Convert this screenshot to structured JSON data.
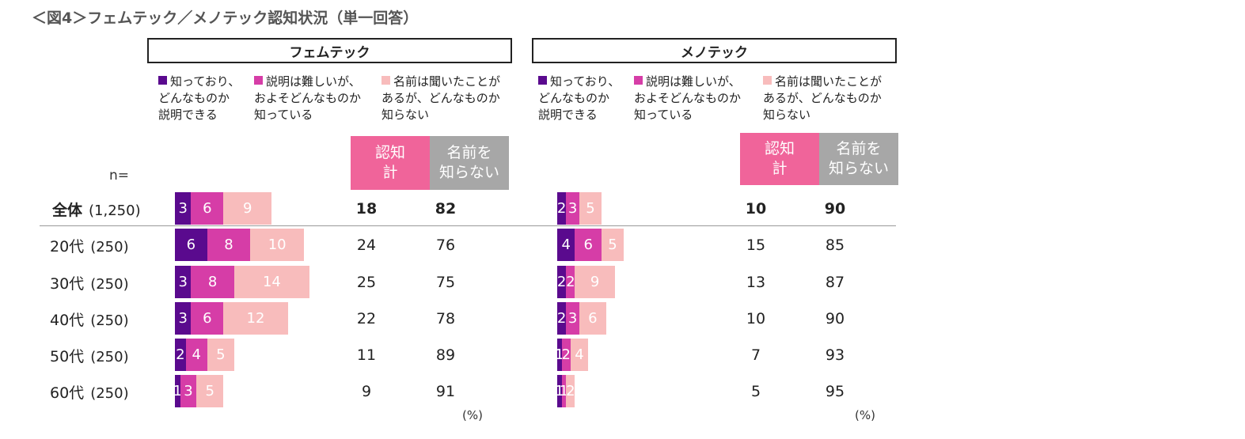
{
  "title": "＜図4＞フェムテック／メノテック認知状況（単一回答）",
  "n_label": "n=",
  "unit": "(%)",
  "colors": {
    "explain": "#5a0a8e",
    "roughly": "#d63da7",
    "heard": "#f8bcbc",
    "aware_header": "#f0649a",
    "unaware_header": "#a7a7a7"
  },
  "legend": [
    {
      "key": "explain",
      "label": "知っており、\nどんなものか\n説明できる"
    },
    {
      "key": "roughly",
      "label": "説明は難しいが、\nおよそどんなものか\n知っている"
    },
    {
      "key": "heard",
      "label": "名前は聞いたことが\nあるが、どんなものか\n知らない"
    }
  ],
  "headers": {
    "aware": "認知\n計",
    "unaware": "名前を\n知らない"
  },
  "rows": [
    {
      "group": "全体",
      "n": "(1,250)",
      "total": true
    },
    {
      "group": "20代",
      "n": "(250)"
    },
    {
      "group": "30代",
      "n": "(250)"
    },
    {
      "group": "40代",
      "n": "(250)"
    },
    {
      "group": "50代",
      "n": "(250)"
    },
    {
      "group": "60代",
      "n": "(250)"
    }
  ],
  "chart_data": [
    {
      "type": "bar",
      "title": "フェムテック",
      "stacked": true,
      "orientation": "horizontal",
      "categories": [
        "全体 (1,250)",
        "20代 (250)",
        "30代 (250)",
        "40代 (250)",
        "50代 (250)",
        "60代 (250)"
      ],
      "series": [
        {
          "name": "知っており、どんなものか説明できる",
          "values": [
            3,
            6,
            3,
            3,
            2,
            1
          ]
        },
        {
          "name": "説明は難しいが、およそどんなものか知っている",
          "values": [
            6,
            8,
            8,
            6,
            4,
            3
          ]
        },
        {
          "name": "名前は聞いたことがあるが、どんなものか知らない",
          "values": [
            9,
            10,
            14,
            12,
            5,
            5
          ]
        }
      ],
      "aware_total": [
        18,
        24,
        25,
        22,
        11,
        9
      ],
      "not_known": [
        82,
        76,
        75,
        78,
        89,
        91
      ]
    },
    {
      "type": "bar",
      "title": "メノテック",
      "stacked": true,
      "orientation": "horizontal",
      "categories": [
        "全体 (1,250)",
        "20代 (250)",
        "30代 (250)",
        "40代 (250)",
        "50代 (250)",
        "60代 (250)"
      ],
      "series": [
        {
          "name": "知っており、どんなものか説明できる",
          "values": [
            2,
            4,
            2,
            2,
            1,
            1
          ]
        },
        {
          "name": "説明は難しいが、およそどんなものか知っている",
          "values": [
            3,
            6,
            2,
            3,
            2,
            1
          ]
        },
        {
          "name": "名前は聞いたことがあるが、どんなものか知らない",
          "values": [
            5,
            5,
            9,
            6,
            4,
            2
          ]
        }
      ],
      "aware_total": [
        10,
        15,
        13,
        10,
        7,
        5
      ],
      "not_known": [
        90,
        85,
        87,
        90,
        93,
        95
      ]
    }
  ]
}
